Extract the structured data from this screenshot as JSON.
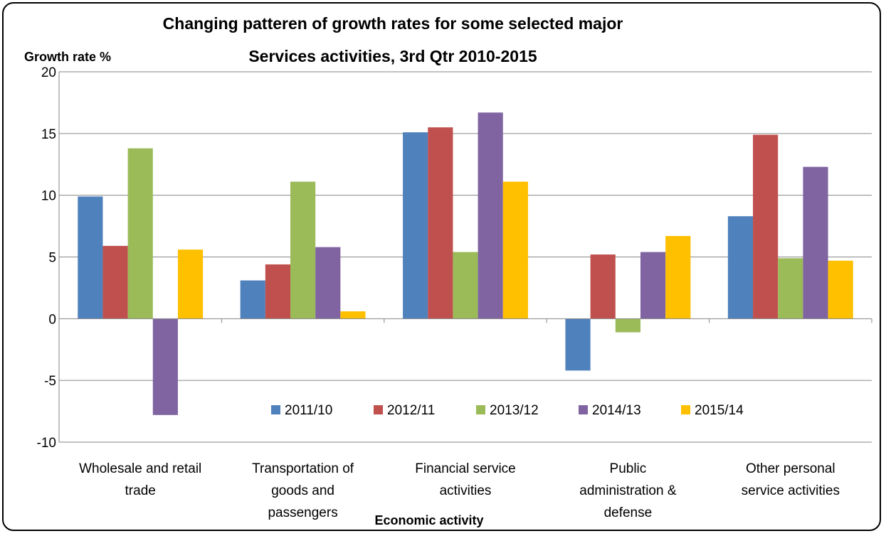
{
  "chart_data": {
    "type": "bar",
    "title_lines": [
      "Changing patteren of growth rates for some selected major",
      "Services activities, 3rd Qtr 2010-2015"
    ],
    "ylabel": "Growth rate %",
    "xlabel": "Economic activity",
    "ylim": [
      -10,
      20
    ],
    "yticks": [
      -10,
      -5,
      0,
      5,
      10,
      15,
      20
    ],
    "grid": true,
    "legend_position": "bottom-inside",
    "categories": [
      [
        "Wholesale and retail",
        "trade"
      ],
      [
        "Transportation of",
        "goods and",
        "passengers"
      ],
      [
        "Financial service",
        "activities"
      ],
      [
        "Public",
        "administration &",
        "defense"
      ],
      [
        "Other personal",
        "service activities"
      ]
    ],
    "series": [
      {
        "name": "2011/10",
        "color": "#4F81BD",
        "values": [
          9.9,
          3.1,
          15.1,
          -4.2,
          8.3
        ]
      },
      {
        "name": "2012/11",
        "color": "#C0504D",
        "values": [
          5.9,
          4.4,
          15.5,
          5.2,
          14.9
        ]
      },
      {
        "name": "2013/12",
        "color": "#9BBB59",
        "values": [
          13.8,
          11.1,
          5.4,
          -1.1,
          4.9
        ]
      },
      {
        "name": "2014/13",
        "color": "#8064A2",
        "values": [
          -7.8,
          5.8,
          16.7,
          5.4,
          12.3
        ]
      },
      {
        "name": "2015/14",
        "color": "#FFC000",
        "values": [
          5.6,
          0.6,
          11.1,
          6.7,
          4.7
        ]
      }
    ]
  }
}
